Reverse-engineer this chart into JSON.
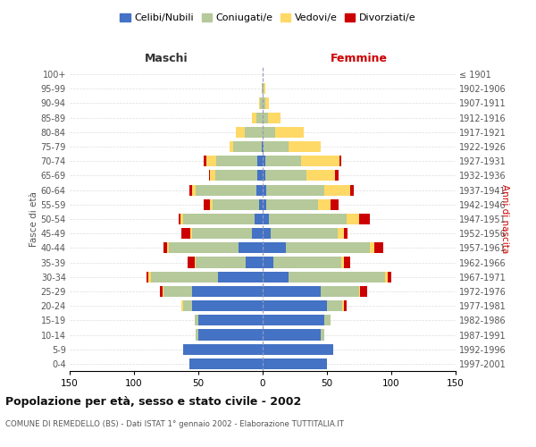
{
  "age_groups": [
    "100+",
    "95-99",
    "90-94",
    "85-89",
    "80-84",
    "75-79",
    "70-74",
    "65-69",
    "60-64",
    "55-59",
    "50-54",
    "45-49",
    "40-44",
    "35-39",
    "30-34",
    "25-29",
    "20-24",
    "15-19",
    "10-14",
    "5-9",
    "0-4"
  ],
  "birth_years": [
    "≤ 1901",
    "1902-1906",
    "1907-1911",
    "1912-1916",
    "1917-1921",
    "1922-1926",
    "1927-1931",
    "1932-1936",
    "1937-1941",
    "1942-1946",
    "1947-1951",
    "1952-1956",
    "1957-1961",
    "1962-1966",
    "1967-1971",
    "1972-1976",
    "1977-1981",
    "1982-1986",
    "1987-1991",
    "1992-1996",
    "1997-2001"
  ],
  "male": {
    "celibi": [
      0,
      0,
      0,
      0,
      0,
      1,
      4,
      4,
      5,
      3,
      6,
      8,
      19,
      13,
      35,
      55,
      55,
      50,
      50,
      62,
      57
    ],
    "coniugati": [
      0,
      1,
      2,
      5,
      14,
      22,
      32,
      33,
      47,
      36,
      56,
      47,
      54,
      39,
      52,
      22,
      7,
      3,
      2,
      0,
      0
    ],
    "vedovi": [
      0,
      0,
      1,
      3,
      7,
      3,
      8,
      4,
      3,
      2,
      2,
      1,
      1,
      1,
      2,
      1,
      1,
      0,
      0,
      0,
      0
    ],
    "divorziati": [
      0,
      0,
      0,
      0,
      0,
      0,
      2,
      1,
      2,
      5,
      1,
      7,
      3,
      5,
      1,
      2,
      0,
      0,
      0,
      0,
      0
    ]
  },
  "female": {
    "nubili": [
      0,
      0,
      0,
      0,
      0,
      1,
      2,
      2,
      3,
      3,
      5,
      6,
      18,
      8,
      20,
      45,
      50,
      48,
      45,
      55,
      50
    ],
    "coniugate": [
      0,
      1,
      2,
      4,
      10,
      19,
      28,
      32,
      45,
      40,
      60,
      52,
      65,
      53,
      75,
      30,
      12,
      5,
      3,
      0,
      0
    ],
    "vedove": [
      0,
      1,
      3,
      10,
      22,
      25,
      30,
      22,
      20,
      10,
      10,
      5,
      4,
      2,
      2,
      1,
      1,
      0,
      0,
      0,
      0
    ],
    "divorziate": [
      0,
      0,
      0,
      0,
      0,
      0,
      1,
      3,
      3,
      6,
      8,
      3,
      7,
      5,
      3,
      5,
      2,
      0,
      0,
      0,
      0
    ]
  },
  "colors": {
    "celibi": "#4472c4",
    "coniugati": "#b5c99a",
    "vedovi": "#ffd966",
    "divorziati": "#cc0000"
  },
  "title": "Popolazione per età, sesso e stato civile - 2002",
  "subtitle": "COMUNE DI REMEDELLO (BS) - Dati ISTAT 1° gennaio 2002 - Elaborazione TUTTITALIA.IT",
  "xlabel_left": "Maschi",
  "xlabel_right": "Femmine",
  "ylabel_left": "Fasce di età",
  "ylabel_right": "Anni di nascita",
  "xlim": 150,
  "bg_color": "#ffffff",
  "grid_color": "#cccccc",
  "legend_labels": [
    "Celibi/Nubili",
    "Coniugati/e",
    "Vedovi/e",
    "Divorziati/e"
  ]
}
